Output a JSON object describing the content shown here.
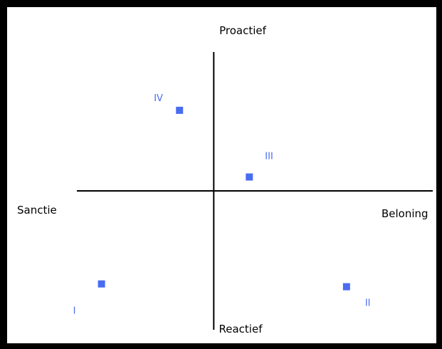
{
  "chart_data": {
    "type": "scatter",
    "title": "",
    "x_axis": {
      "negative_label": "Sanctie",
      "positive_label": "Beloning",
      "range": [
        -100,
        160
      ]
    },
    "y_axis": {
      "positive_label": "Proactief",
      "negative_label": "Reactief",
      "range": [
        -100,
        100
      ]
    },
    "point_color": "#4a6cf0",
    "points": [
      {
        "label": "I",
        "x": -82,
        "y": -67
      },
      {
        "label": "II",
        "x": 97,
        "y": -69
      },
      {
        "label": "III",
        "x": 26,
        "y": 10
      },
      {
        "label": "IV",
        "x": -25,
        "y": 58
      }
    ]
  }
}
